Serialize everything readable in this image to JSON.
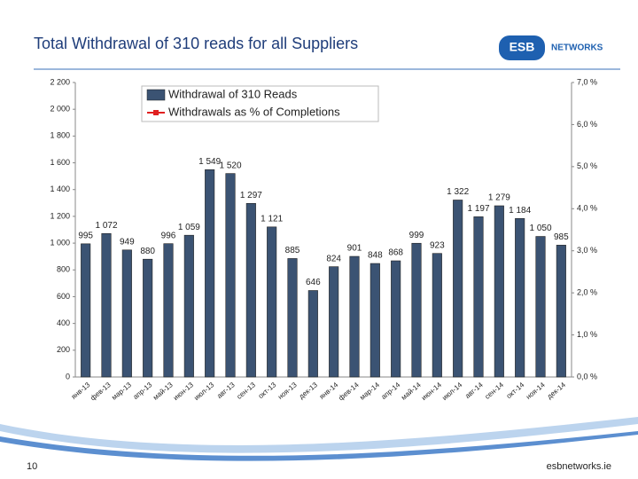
{
  "slide": {
    "page_number": "10",
    "footer": "esbnetworks.ie",
    "logo_mark": "ESB",
    "logo_text": "NETWORKS"
  },
  "chart_data": {
    "type": "bar",
    "title": "Total Withdrawal of 310 reads for all Suppliers",
    "categories": [
      "янв-13",
      "фев-13",
      "мар-13",
      "апр-13",
      "май-13",
      "июн-13",
      "июл-13",
      "авг-13",
      "сен-13",
      "окт-13",
      "ноя-13",
      "дек-13",
      "янв-14",
      "фев-14",
      "мар-14",
      "апр-14",
      "май-14",
      "июн-14",
      "июл-14",
      "авг-14",
      "сен-14",
      "окт-14",
      "ноя-14",
      "дек-14"
    ],
    "series": [
      {
        "name": "Withdrawal of 310 Reads",
        "color": "#3b5373",
        "values": [
          995,
          1072,
          949,
          880,
          996,
          1059,
          1549,
          1520,
          1297,
          1121,
          885,
          646,
          824,
          901,
          848,
          868,
          999,
          923,
          1322,
          1197,
          1279,
          1184,
          1050,
          985
        ],
        "value_labels": [
          "995",
          "1 072",
          "949",
          "880",
          "996",
          "1 059",
          "1 549",
          "1 520",
          "1 297",
          "1 121",
          "885",
          "646",
          "824",
          "901",
          "848",
          "868",
          "999",
          "923",
          "1 322",
          "1 197",
          "1 279",
          "1 184",
          "1 050",
          "985"
        ]
      },
      {
        "name": "Withdrawals as % of Completions",
        "color": "#e02020",
        "axis": "y2",
        "values": [
          null,
          null,
          null,
          null,
          null,
          null,
          null,
          null,
          null,
          null,
          null,
          null,
          null,
          null,
          null,
          null,
          null,
          null,
          null,
          null,
          null,
          null,
          null,
          null
        ]
      }
    ],
    "ylim": [
      0,
      2200
    ],
    "yticks": [
      0,
      200,
      400,
      600,
      800,
      {
        "value": 1000,
        "label": "1 000"
      },
      {
        "value": 1200,
        "label": "1 200"
      },
      {
        "value": 1400,
        "label": "1 400"
      },
      {
        "value": 1600,
        "label": "1 600"
      },
      {
        "value": 1800,
        "label": "1 800"
      },
      {
        "value": 2000,
        "label": "2 000"
      },
      {
        "value": 2200,
        "label": "2 200"
      }
    ],
    "y2lim": [
      0,
      7
    ],
    "y2ticks": [
      {
        "value": 0,
        "label": "0,0 %"
      },
      {
        "value": 1,
        "label": "1,0 %"
      },
      {
        "value": 2,
        "label": "2,0 %"
      },
      {
        "value": 3,
        "label": "3,0 %"
      },
      {
        "value": 4,
        "label": "4,0 %"
      },
      {
        "value": 5,
        "label": "5,0 %"
      },
      {
        "value": 6,
        "label": "6,0 %"
      },
      {
        "value": 7,
        "label": "7,0 %"
      }
    ],
    "grid": false,
    "legend": "top"
  }
}
